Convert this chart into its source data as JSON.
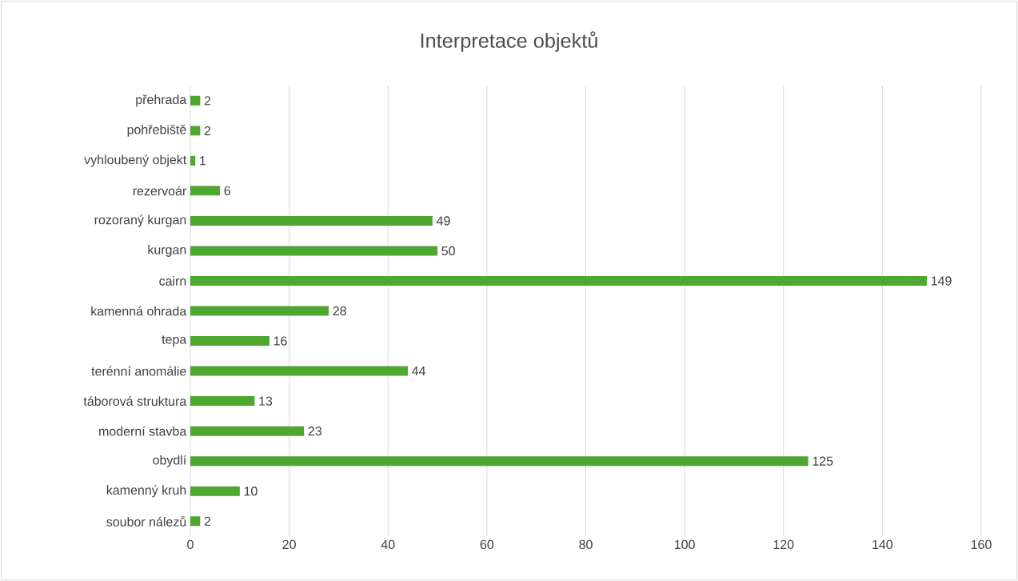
{
  "chart_data": {
    "type": "bar",
    "orientation": "horizontal",
    "title": "Interpretace objektů",
    "categories": [
      "přehrada",
      "pohřebiště",
      "vyhloubený objekt",
      "rezervoár",
      "rozoraný kurgan",
      "kurgan",
      "cairn",
      "kamenná ohrada",
      "tepa",
      "terénní anomálie",
      "táborová struktura",
      "moderní stavba",
      "obydlí",
      "kamenný kruh",
      "soubor nálezů"
    ],
    "values": [
      2,
      2,
      1,
      6,
      49,
      50,
      149,
      28,
      16,
      44,
      13,
      23,
      125,
      10,
      2
    ],
    "color": "#4ea72e",
    "xlim": [
      0,
      160
    ],
    "xticks": [
      0,
      20,
      40,
      60,
      80,
      100,
      120,
      140,
      160
    ],
    "grid": "x",
    "data_labels": true
  }
}
